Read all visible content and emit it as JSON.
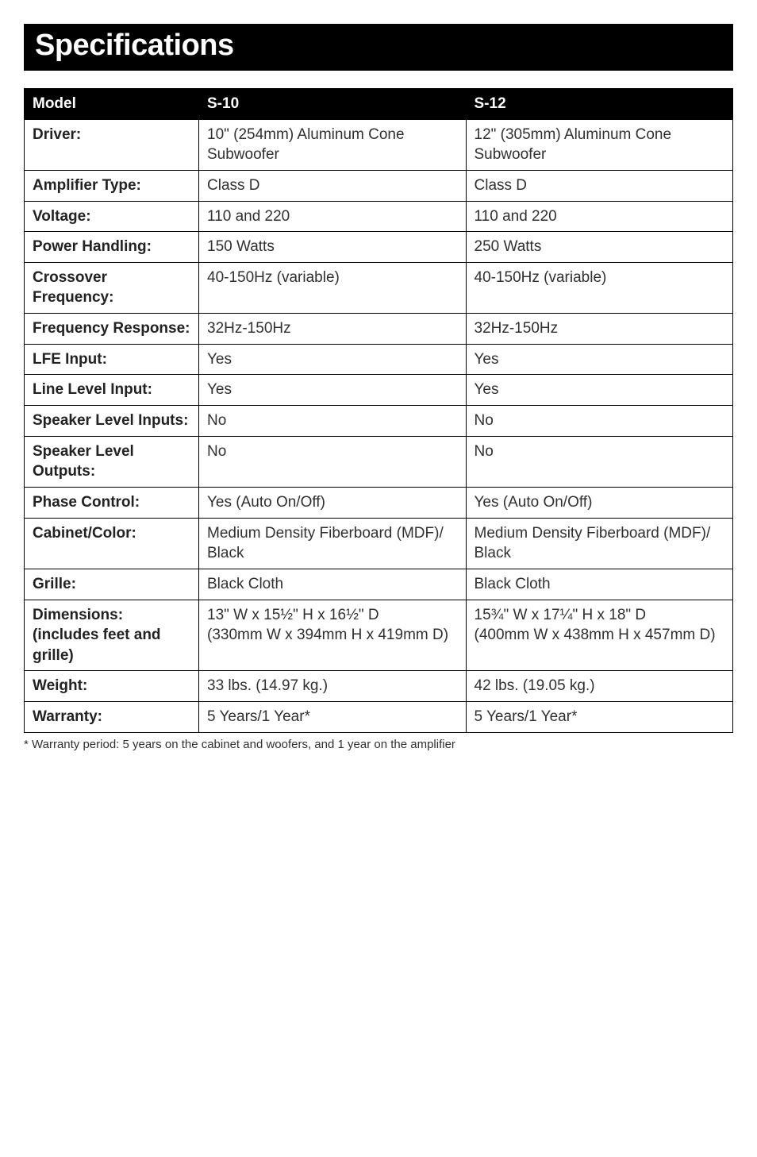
{
  "title": "Specifications",
  "table": {
    "header": {
      "label": "Model",
      "col1": "S-10",
      "col2": "S-12"
    },
    "rows": [
      {
        "label": "Driver:",
        "col1": "10\" (254mm) Aluminum Cone Subwoofer",
        "col2": "12\" (305mm) Aluminum Cone Subwoofer"
      },
      {
        "label": "Amplifier Type:",
        "col1": "Class D",
        "col2": "Class D"
      },
      {
        "label": "Voltage:",
        "col1": "110 and 220",
        "col2": "110 and 220"
      },
      {
        "label": "Power Handling:",
        "col1": "150 Watts",
        "col2": "250 Watts"
      },
      {
        "label": "Crossover Frequency:",
        "col1": "40-150Hz (variable)",
        "col2": "40-150Hz (variable)"
      },
      {
        "label": "Frequency Response:",
        "col1": "32Hz-150Hz",
        "col2": "32Hz-150Hz"
      },
      {
        "label": "LFE Input:",
        "col1": "Yes",
        "col2": "Yes"
      },
      {
        "label": "Line Level Input:",
        "col1": "Yes",
        "col2": "Yes"
      },
      {
        "label": "Speaker Level Inputs:",
        "col1": "No",
        "col2": "No"
      },
      {
        "label": "Speaker Level Outputs:",
        "col1": "No",
        "col2": "No"
      },
      {
        "label": "Phase Control:",
        "col1": "Yes (Auto On/Off)",
        "col2": "Yes (Auto On/Off)"
      }
    ],
    "cabinet": {
      "label": "Cabinet/Color:",
      "col1_line1": "Medium Density Fiberboard (MDF)/",
      "col1_line2": "Black",
      "col2_line1": "Medium Density Fiberboard (MDF)/",
      "col2_line2": "Black"
    },
    "grille": {
      "label": "Grille:",
      "col1": "Black Cloth",
      "col2": "Black Cloth"
    },
    "dimensions": {
      "label_line1": "Dimensions:",
      "label_line2": "(includes feet and grille)",
      "col1_line1": "13\" W x 15½\" H x 16½\" D",
      "col1_line2": "(330mm W x 394mm H x 419mm D)",
      "col2_line1": "15¾\" W x 17¼\" H x 18\" D",
      "col2_line2": "(400mm W x 438mm H x 457mm D)"
    },
    "weight": {
      "label": "Weight:",
      "col1": "33 lbs. (14.97 kg.)",
      "col2": "42 lbs. (19.05 kg.)"
    },
    "warranty": {
      "label": "Warranty:",
      "col1": "5 Years/1 Year*",
      "col2": "5 Years/1 Year*"
    }
  },
  "footnote": "* Warranty period: 5 years on the cabinet and woofers, and 1 year on the amplifier"
}
